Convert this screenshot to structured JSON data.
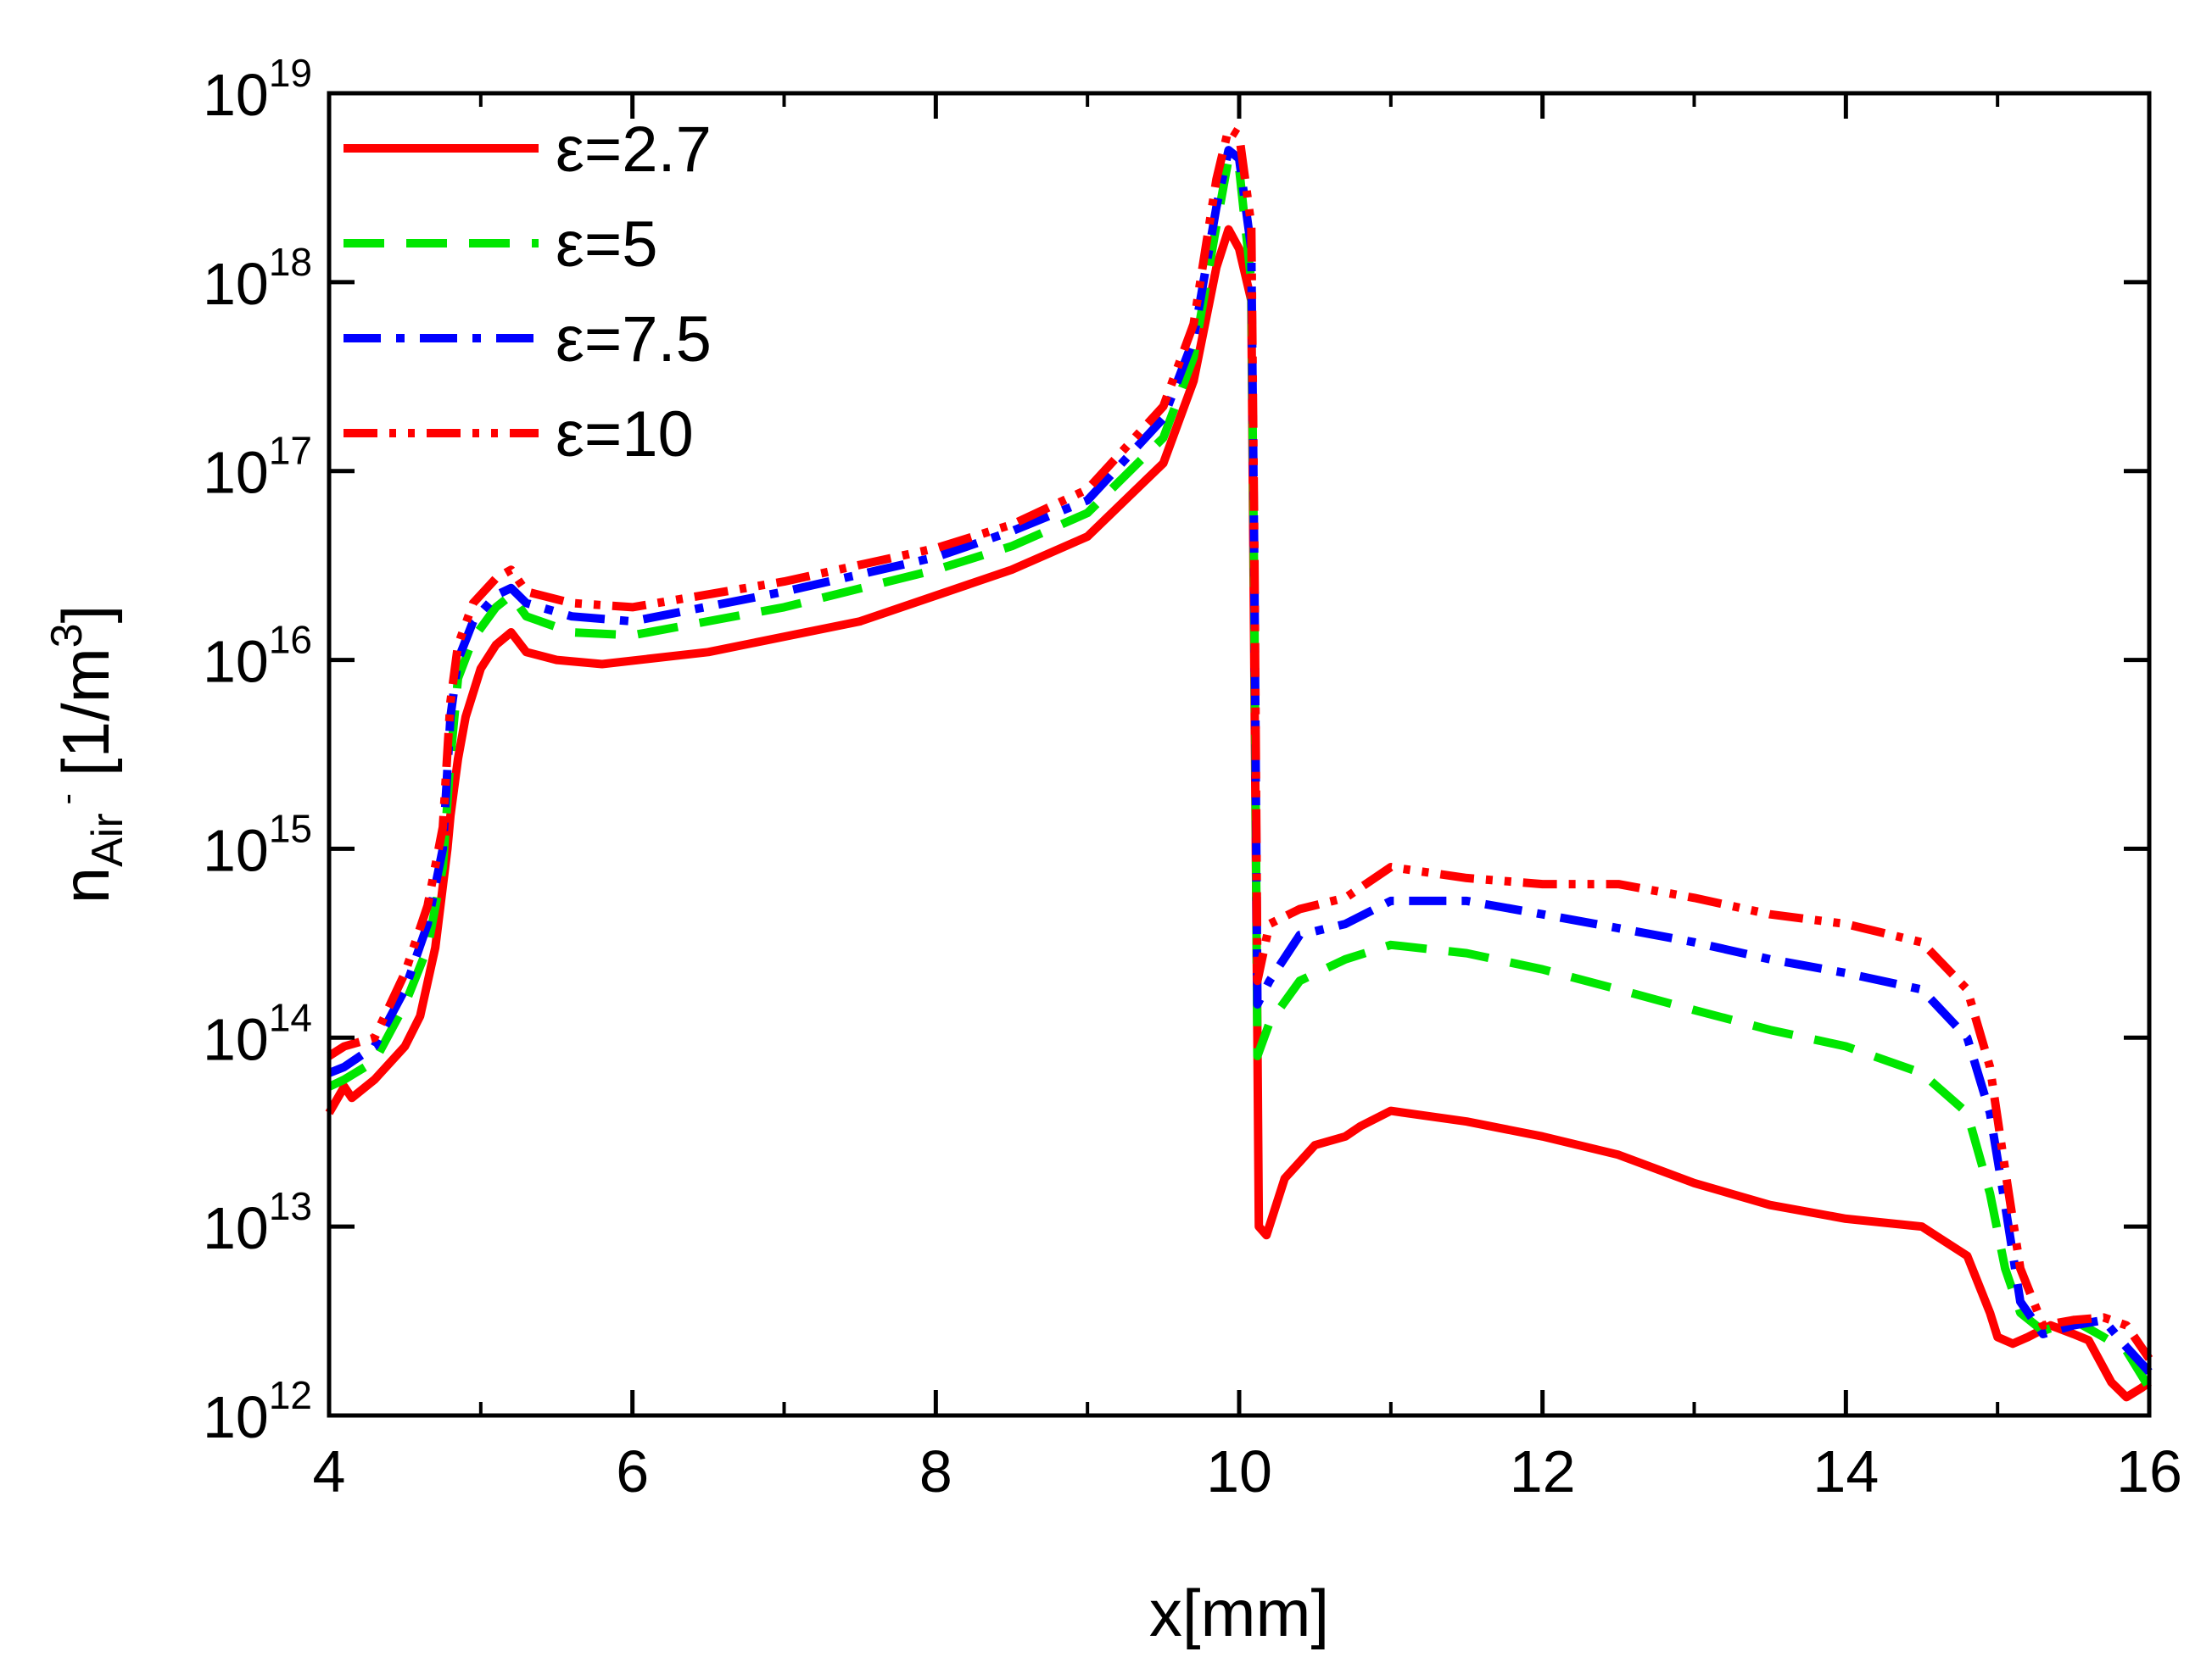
{
  "chart_data": {
    "type": "line",
    "title": "",
    "xlabel": "x[mm]",
    "ylabel": {
      "main": "n",
      "sub": "Air",
      "sup": "-",
      "unit": "[1/m",
      "unit_sup": "3",
      "unit_close": "]"
    },
    "xlim": [
      4,
      16
    ],
    "ylim_log10": [
      12,
      19
    ],
    "yscale": "log",
    "x_ticks": [
      4,
      6,
      8,
      10,
      12,
      14,
      16
    ],
    "x_tick_labels": [
      "4",
      "6",
      "8",
      "10",
      "12",
      "14",
      "16"
    ],
    "y_ticks_exp": [
      12,
      13,
      14,
      15,
      16,
      17,
      18,
      19
    ],
    "y_tick_base": "10",
    "y_tick_exp_labels": [
      "12",
      "13",
      "14",
      "15",
      "16",
      "17",
      "18",
      "19"
    ],
    "legend_position": "top-left",
    "series": [
      {
        "name": "ε=2.7",
        "color": "#ff0000",
        "dash": "solid",
        "points": [
          [
            4.0,
            40000000000000.0
          ],
          [
            4.1,
            55000000000000.0
          ],
          [
            4.15,
            48000000000000.0
          ],
          [
            4.3,
            60000000000000.0
          ],
          [
            4.5,
            90000000000000.0
          ],
          [
            4.6,
            130000000000000.0
          ],
          [
            4.7,
            300000000000000.0
          ],
          [
            4.78,
            1000000000000000.0
          ],
          [
            4.8,
            1500000000000000.0
          ],
          [
            4.85,
            3000000000000000.0
          ],
          [
            4.9,
            5000000000000000.0
          ],
          [
            5.0,
            9000000000000000.0
          ],
          [
            5.1,
            1.2e+16
          ],
          [
            5.2,
            1.4e+16
          ],
          [
            5.3,
            1.1e+16
          ],
          [
            5.5,
            1e+16
          ],
          [
            5.8,
            9500000000000000.0
          ],
          [
            6.5,
            1.1e+16
          ],
          [
            7.5,
            1.6e+16
          ],
          [
            8.5,
            3e+16
          ],
          [
            9.0,
            4.5e+16
          ],
          [
            9.5,
            1.1e+17
          ],
          [
            9.7,
            3e+17
          ],
          [
            9.85,
            1.2e+18
          ],
          [
            9.93,
            1.9e+18
          ],
          [
            10.0,
            1.5e+18
          ],
          [
            10.08,
            8e+17
          ],
          [
            10.12,
            100000000000000.0
          ],
          [
            10.13,
            10000000000000.0
          ],
          [
            10.18,
            9000000000000.0
          ],
          [
            10.3,
            18000000000000.0
          ],
          [
            10.5,
            27000000000000.0
          ],
          [
            10.7,
            30000000000000.0
          ],
          [
            10.8,
            34000000000000.0
          ],
          [
            11.0,
            41000000000000.0
          ],
          [
            11.5,
            36000000000000.0
          ],
          [
            12.0,
            30000000000000.0
          ],
          [
            12.5,
            24000000000000.0
          ],
          [
            13.0,
            17000000000000.0
          ],
          [
            13.5,
            13000000000000.0
          ],
          [
            14.0,
            11000000000000.0
          ],
          [
            14.5,
            10000000000000.0
          ],
          [
            14.8,
            7000000000000.0
          ],
          [
            14.95,
            3500000000000.0
          ],
          [
            15.0,
            2600000000000.0
          ],
          [
            15.1,
            2400000000000.0
          ],
          [
            15.2,
            2600000000000.0
          ],
          [
            15.35,
            3000000000000.0
          ],
          [
            15.5,
            2700000000000.0
          ],
          [
            15.6,
            2500000000000.0
          ],
          [
            15.75,
            1500000000000.0
          ],
          [
            15.85,
            1250000000000.0
          ],
          [
            15.95,
            1400000000000.0
          ],
          [
            16.0,
            1500000000000.0
          ]
        ]
      },
      {
        "name": "ε=5",
        "color": "#00e600",
        "dash": "dashed",
        "points": [
          [
            4.0,
            55000000000000.0
          ],
          [
            4.1,
            60000000000000.0
          ],
          [
            4.3,
            75000000000000.0
          ],
          [
            4.5,
            150000000000000.0
          ],
          [
            4.65,
            300000000000000.0
          ],
          [
            4.75,
            800000000000000.0
          ],
          [
            4.8,
            3000000000000000.0
          ],
          [
            4.85,
            8000000000000000.0
          ],
          [
            4.95,
            1.3e+16
          ],
          [
            5.1,
            1.9e+16
          ],
          [
            5.2,
            2.2e+16
          ],
          [
            5.3,
            1.7e+16
          ],
          [
            5.6,
            1.4e+16
          ],
          [
            6.0,
            1.35e+16
          ],
          [
            7.0,
            1.9e+16
          ],
          [
            8.0,
            3e+16
          ],
          [
            8.5,
            4e+16
          ],
          [
            9.0,
            6e+16
          ],
          [
            9.5,
            1.5e+17
          ],
          [
            9.7,
            4e+17
          ],
          [
            9.85,
            2e+18
          ],
          [
            9.93,
            4.5e+18
          ],
          [
            10.0,
            4e+18
          ],
          [
            10.08,
            1e+18
          ],
          [
            10.1,
            2e+16
          ],
          [
            10.12,
            80000000000000.0
          ],
          [
            10.2,
            120000000000000.0
          ],
          [
            10.4,
            200000000000000.0
          ],
          [
            10.7,
            260000000000000.0
          ],
          [
            11.0,
            310000000000000.0
          ],
          [
            11.5,
            280000000000000.0
          ],
          [
            12.0,
            230000000000000.0
          ],
          [
            12.5,
            180000000000000.0
          ],
          [
            13.0,
            140000000000000.0
          ],
          [
            13.5,
            110000000000000.0
          ],
          [
            14.0,
            90000000000000.0
          ],
          [
            14.5,
            65000000000000.0
          ],
          [
            14.8,
            40000000000000.0
          ],
          [
            14.95,
            15000000000000.0
          ],
          [
            15.05,
            6000000000000.0
          ],
          [
            15.15,
            3500000000000.0
          ],
          [
            15.3,
            2800000000000.0
          ],
          [
            15.5,
            3200000000000.0
          ],
          [
            15.7,
            2600000000000.0
          ],
          [
            15.85,
            2200000000000.0
          ],
          [
            16.0,
            1400000000000.0
          ]
        ]
      },
      {
        "name": "ε=7.5",
        "color": "#0000ff",
        "dash": "dashdot",
        "points": [
          [
            4.0,
            65000000000000.0
          ],
          [
            4.1,
            70000000000000.0
          ],
          [
            4.3,
            90000000000000.0
          ],
          [
            4.5,
            180000000000000.0
          ],
          [
            4.65,
            400000000000000.0
          ],
          [
            4.75,
            1000000000000000.0
          ],
          [
            4.8,
            5000000000000000.0
          ],
          [
            4.85,
            1e+16
          ],
          [
            4.95,
            1.6e+16
          ],
          [
            5.1,
            2.2e+16
          ],
          [
            5.2,
            2.4e+16
          ],
          [
            5.3,
            2e+16
          ],
          [
            5.6,
            1.7e+16
          ],
          [
            6.0,
            1.6e+16
          ],
          [
            7.0,
            2.3e+16
          ],
          [
            8.0,
            3.5e+16
          ],
          [
            8.5,
            4.8e+16
          ],
          [
            9.0,
            7e+16
          ],
          [
            9.5,
            1.9e+17
          ],
          [
            9.7,
            5e+17
          ],
          [
            9.85,
            2.5e+18
          ],
          [
            9.93,
            5e+18
          ],
          [
            10.0,
            4.5e+18
          ],
          [
            10.08,
            1.5e+18
          ],
          [
            10.1,
            3e+16
          ],
          [
            10.12,
            150000000000000.0
          ],
          [
            10.2,
            200000000000000.0
          ],
          [
            10.4,
            350000000000000.0
          ],
          [
            10.7,
            400000000000000.0
          ],
          [
            11.0,
            530000000000000.0
          ],
          [
            11.5,
            530000000000000.0
          ],
          [
            12.0,
            450000000000000.0
          ],
          [
            12.5,
            380000000000000.0
          ],
          [
            13.0,
            320000000000000.0
          ],
          [
            13.5,
            260000000000000.0
          ],
          [
            14.0,
            220000000000000.0
          ],
          [
            14.5,
            180000000000000.0
          ],
          [
            14.8,
            100000000000000.0
          ],
          [
            14.95,
            40000000000000.0
          ],
          [
            15.05,
            13000000000000.0
          ],
          [
            15.15,
            4000000000000.0
          ],
          [
            15.3,
            2700000000000.0
          ],
          [
            15.5,
            3000000000000.0
          ],
          [
            15.7,
            3200000000000.0
          ],
          [
            15.85,
            2300000000000.0
          ],
          [
            16.0,
            1700000000000.0
          ]
        ]
      },
      {
        "name": "ε=10",
        "color": "#ff0000",
        "dash": "dashdotdot",
        "points": [
          [
            4.0,
            80000000000000.0
          ],
          [
            4.1,
            90000000000000.0
          ],
          [
            4.3,
            100000000000000.0
          ],
          [
            4.5,
            220000000000000.0
          ],
          [
            4.65,
            500000000000000.0
          ],
          [
            4.75,
            1300000000000000.0
          ],
          [
            4.8,
            6000000000000000.0
          ],
          [
            4.85,
            1.2e+16
          ],
          [
            4.95,
            2e+16
          ],
          [
            5.1,
            2.7e+16
          ],
          [
            5.2,
            3e+16
          ],
          [
            5.3,
            2.3e+16
          ],
          [
            5.6,
            2e+16
          ],
          [
            6.0,
            1.9e+16
          ],
          [
            7.0,
            2.6e+16
          ],
          [
            8.0,
            3.9e+16
          ],
          [
            8.5,
            5.2e+16
          ],
          [
            9.0,
            8e+16
          ],
          [
            9.5,
            2.2e+17
          ],
          [
            9.7,
            6e+17
          ],
          [
            9.85,
            3.5e+18
          ],
          [
            9.93,
            6.5e+18
          ],
          [
            10.0,
            6e+18
          ],
          [
            10.08,
            2e+18
          ],
          [
            10.1,
            4e+16
          ],
          [
            10.12,
            200000000000000.0
          ],
          [
            10.2,
            400000000000000.0
          ],
          [
            10.4,
            480000000000000.0
          ],
          [
            10.7,
            550000000000000.0
          ],
          [
            11.0,
            800000000000000.0
          ],
          [
            11.5,
            700000000000000.0
          ],
          [
            12.0,
            650000000000000.0
          ],
          [
            12.5,
            650000000000000.0
          ],
          [
            13.0,
            550000000000000.0
          ],
          [
            13.5,
            450000000000000.0
          ],
          [
            14.0,
            400000000000000.0
          ],
          [
            14.5,
            320000000000000.0
          ],
          [
            14.8,
            180000000000000.0
          ],
          [
            14.95,
            70000000000000.0
          ],
          [
            15.05,
            20000000000000.0
          ],
          [
            15.15,
            6000000000000.0
          ],
          [
            15.3,
            3000000000000.0
          ],
          [
            15.5,
            3200000000000.0
          ],
          [
            15.7,
            3300000000000.0
          ],
          [
            15.85,
            3000000000000.0
          ],
          [
            16.0,
            2000000000000.0
          ]
        ]
      }
    ]
  }
}
